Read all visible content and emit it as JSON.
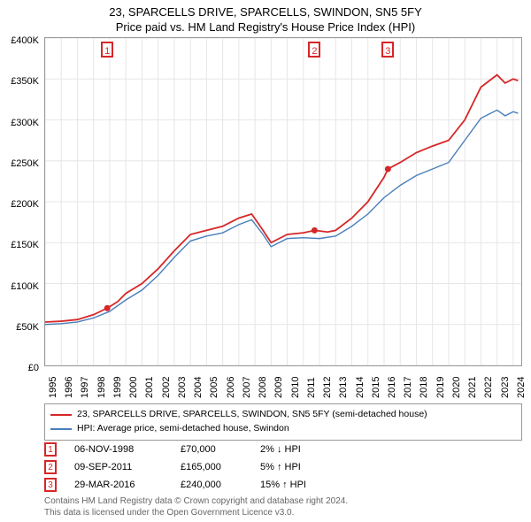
{
  "title_line1": "23, SPARCELLS DRIVE, SPARCELLS, SWINDON, SN5 5FY",
  "title_line2": "Price paid vs. HM Land Registry's House Price Index (HPI)",
  "chart": {
    "type": "line",
    "background_color": "#ffffff",
    "border_color": "#999999",
    "grid_color": "#e6e6e6",
    "x_min": 1995,
    "x_max": 2024.5,
    "x_ticks": [
      1995,
      1996,
      1997,
      1998,
      1999,
      2000,
      2001,
      2002,
      2003,
      2004,
      2005,
      2006,
      2007,
      2008,
      2009,
      2010,
      2011,
      2012,
      2013,
      2014,
      2015,
      2016,
      2017,
      2018,
      2019,
      2020,
      2021,
      2022,
      2023,
      2024
    ],
    "y_min": 0,
    "y_max": 400000,
    "y_ticks": [
      0,
      50000,
      100000,
      150000,
      200000,
      250000,
      300000,
      350000,
      400000
    ],
    "y_tick_labels": [
      "£0",
      "£50K",
      "£100K",
      "£150K",
      "£200K",
      "£250K",
      "£300K",
      "£350K",
      "£400K"
    ],
    "axis_fontsize": 11,
    "series": [
      {
        "name": "property",
        "color": "#d62728",
        "width": 1.8,
        "points": [
          [
            1995.0,
            53000
          ],
          [
            1996.0,
            54000
          ],
          [
            1997.0,
            56000
          ],
          [
            1998.0,
            62000
          ],
          [
            1998.85,
            70000
          ],
          [
            1999.5,
            78000
          ],
          [
            2000.0,
            88000
          ],
          [
            2001.0,
            100000
          ],
          [
            2002.0,
            118000
          ],
          [
            2003.0,
            140000
          ],
          [
            2004.0,
            160000
          ],
          [
            2005.0,
            165000
          ],
          [
            2006.0,
            170000
          ],
          [
            2007.0,
            180000
          ],
          [
            2007.8,
            185000
          ],
          [
            2008.5,
            165000
          ],
          [
            2009.0,
            150000
          ],
          [
            2010.0,
            160000
          ],
          [
            2011.0,
            162000
          ],
          [
            2011.7,
            165000
          ],
          [
            2012.5,
            163000
          ],
          [
            2013.0,
            165000
          ],
          [
            2014.0,
            180000
          ],
          [
            2015.0,
            200000
          ],
          [
            2016.0,
            230000
          ],
          [
            2016.24,
            240000
          ],
          [
            2017.0,
            248000
          ],
          [
            2018.0,
            260000
          ],
          [
            2019.0,
            268000
          ],
          [
            2020.0,
            275000
          ],
          [
            2021.0,
            300000
          ],
          [
            2022.0,
            340000
          ],
          [
            2023.0,
            355000
          ],
          [
            2023.5,
            345000
          ],
          [
            2024.0,
            350000
          ],
          [
            2024.3,
            348000
          ]
        ]
      },
      {
        "name": "hpi",
        "color": "#4a7ebb",
        "width": 1.4,
        "points": [
          [
            1995.0,
            50000
          ],
          [
            1996.0,
            51000
          ],
          [
            1997.0,
            53000
          ],
          [
            1998.0,
            58000
          ],
          [
            1999.0,
            66000
          ],
          [
            2000.0,
            80000
          ],
          [
            2001.0,
            92000
          ],
          [
            2002.0,
            110000
          ],
          [
            2003.0,
            132000
          ],
          [
            2004.0,
            152000
          ],
          [
            2005.0,
            158000
          ],
          [
            2006.0,
            162000
          ],
          [
            2007.0,
            172000
          ],
          [
            2007.8,
            178000
          ],
          [
            2008.5,
            160000
          ],
          [
            2009.0,
            145000
          ],
          [
            2010.0,
            155000
          ],
          [
            2011.0,
            156000
          ],
          [
            2012.0,
            155000
          ],
          [
            2013.0,
            158000
          ],
          [
            2014.0,
            170000
          ],
          [
            2015.0,
            185000
          ],
          [
            2016.0,
            205000
          ],
          [
            2017.0,
            220000
          ],
          [
            2018.0,
            232000
          ],
          [
            2019.0,
            240000
          ],
          [
            2020.0,
            248000
          ],
          [
            2021.0,
            275000
          ],
          [
            2022.0,
            302000
          ],
          [
            2023.0,
            312000
          ],
          [
            2023.5,
            305000
          ],
          [
            2024.0,
            310000
          ],
          [
            2024.3,
            308000
          ]
        ]
      }
    ],
    "sale_markers": [
      {
        "n": "1",
        "x": 1998.85,
        "y": 70000
      },
      {
        "n": "2",
        "x": 2011.69,
        "y": 165000
      },
      {
        "n": "3",
        "x": 2016.24,
        "y": 240000
      }
    ],
    "marker_dot_color": "#d62728",
    "marker_dot_radius": 3.5
  },
  "legend": {
    "items": [
      {
        "color": "#d62728",
        "label": "23, SPARCELLS DRIVE, SPARCELLS, SWINDON, SN5 5FY (semi-detached house)"
      },
      {
        "color": "#4a7ebb",
        "label": "HPI: Average price, semi-detached house, Swindon"
      }
    ]
  },
  "sales": [
    {
      "n": "1",
      "date": "06-NOV-1998",
      "price": "£70,000",
      "diff": "2% ↓ HPI"
    },
    {
      "n": "2",
      "date": "09-SEP-2011",
      "price": "£165,000",
      "diff": "5% ↑ HPI"
    },
    {
      "n": "3",
      "date": "29-MAR-2016",
      "price": "£240,000",
      "diff": "15% ↑ HPI"
    }
  ],
  "footer_line1": "Contains HM Land Registry data © Crown copyright and database right 2024.",
  "footer_line2": "This data is licensed under the Open Government Licence v3.0."
}
